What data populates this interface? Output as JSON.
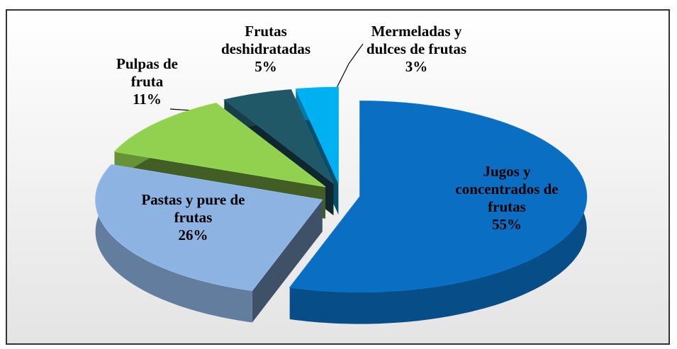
{
  "chart_data": {
    "type": "pie",
    "categories": [
      "Jugos y concentrados de frutas",
      "Pastas y pure de frutas",
      "Pulpas de fruta",
      "Frutas deshidratadas",
      "Mermeladas y dulces de frutas"
    ],
    "values": [
      55,
      26,
      11,
      5,
      3
    ],
    "value_labels": [
      "55%",
      "26%",
      "11%",
      "5%",
      "3%"
    ],
    "colors": [
      "#0a6fc2",
      "#8db3e2",
      "#92d050",
      "#215868",
      "#00b0f0"
    ]
  }
}
